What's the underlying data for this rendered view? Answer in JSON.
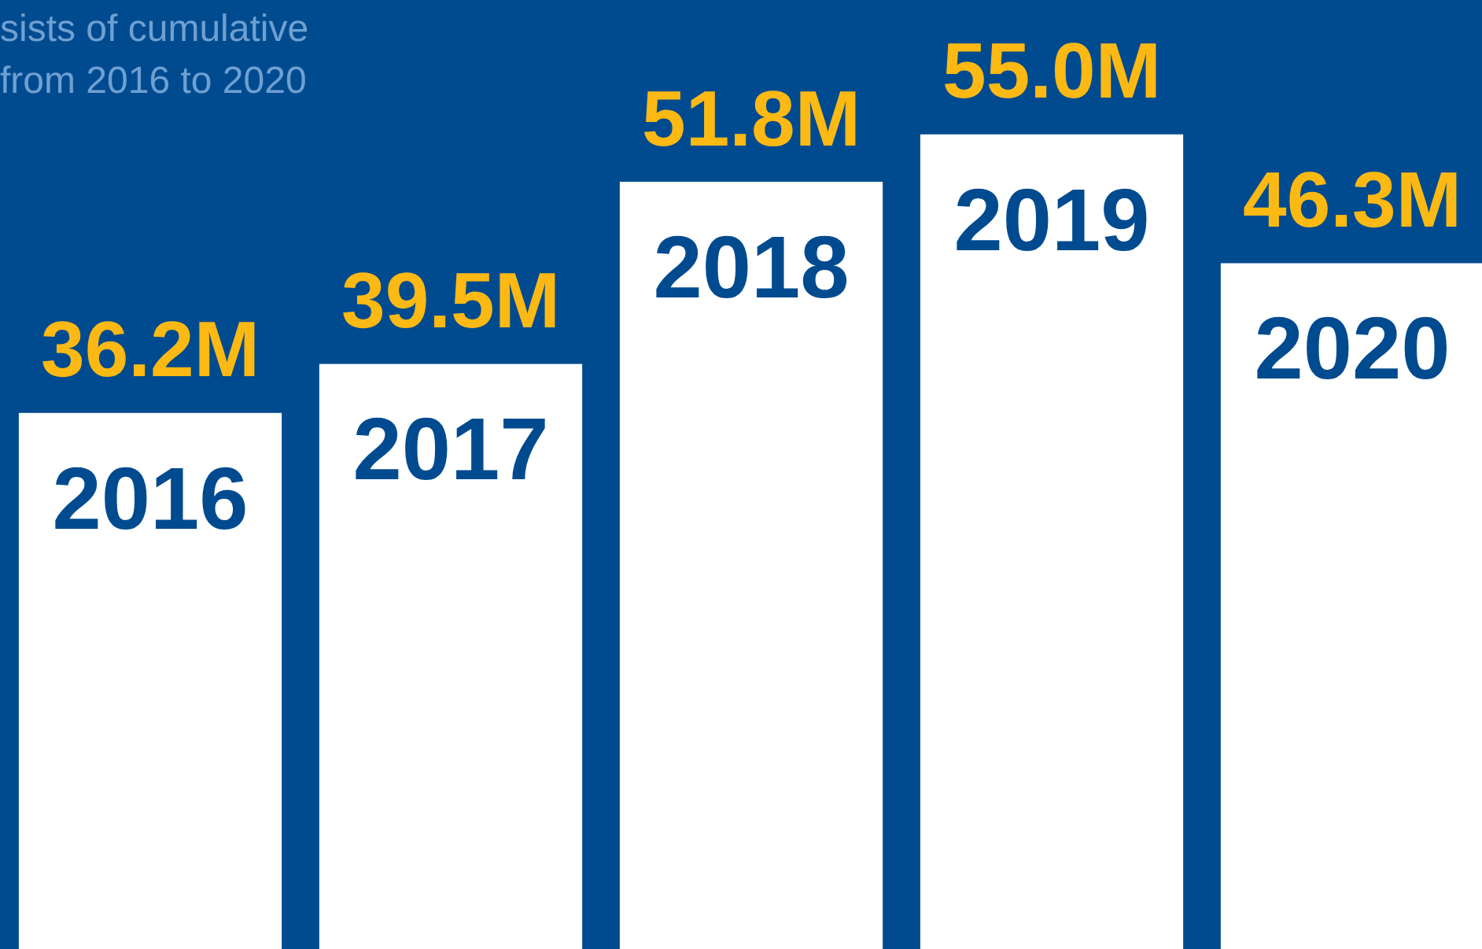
{
  "chart_data": {
    "type": "bar",
    "categories": [
      "2016",
      "2017",
      "2018",
      "2019",
      "2020"
    ],
    "values": [
      36.2,
      39.5,
      51.8,
      55.0,
      46.3
    ],
    "value_labels": [
      "36.2M",
      "39.5M",
      "51.8M",
      "55.0M",
      "46.3M"
    ],
    "color": "#ffffff",
    "annotations": [
      "sists of cumulative",
      "from 2016 to 2020"
    ],
    "legend": false
  }
}
